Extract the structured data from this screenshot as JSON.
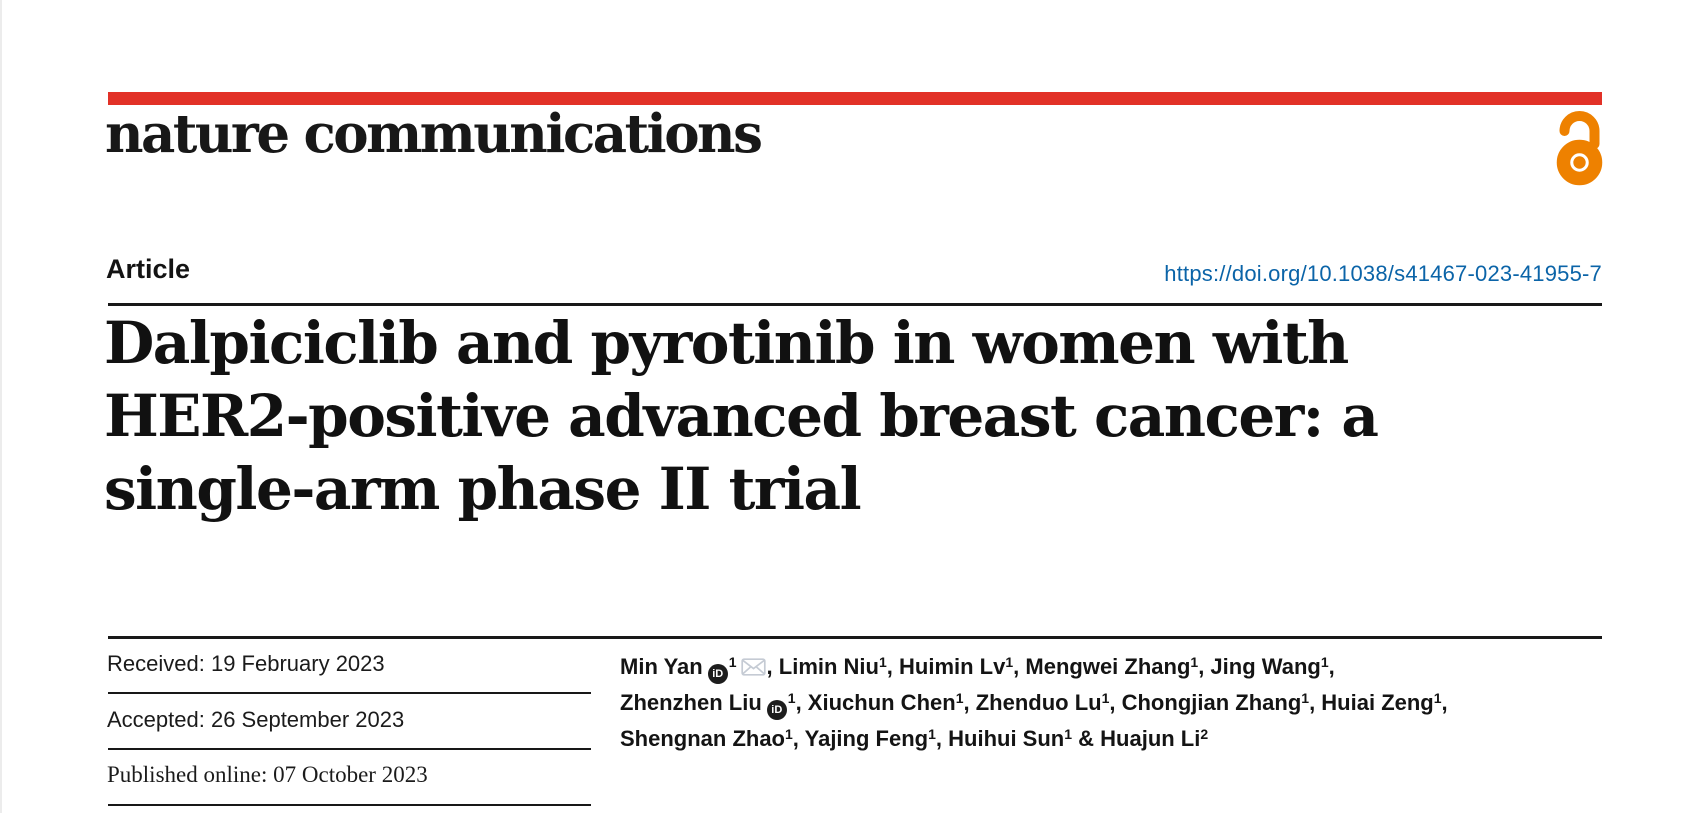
{
  "brand": {
    "logo_text": "nature communications",
    "bar_color": "#e23127",
    "open_access_color": "#ee8100"
  },
  "article": {
    "kicker": "Article",
    "doi": "https://doi.org/10.1038/s41467-023-41955-7",
    "doi_color": "#0b64a8",
    "title_lines": [
      "Dalpiciclib and pyrotinib in women with",
      "HER2-positive advanced breast cancer: a",
      "single-arm phase II trial"
    ]
  },
  "dates": {
    "rows": [
      {
        "label": "Received:",
        "value": "19 February 2023"
      },
      {
        "label": "Accepted:",
        "value": "26 September 2023"
      },
      {
        "label": "Published online:",
        "value": "07 October 2023"
      }
    ]
  },
  "authors": {
    "lines": [
      {
        "items": [
          {
            "name": "Min Yan",
            "sup": "1",
            "orcid": true,
            "email": true,
            "trail": ","
          },
          {
            "name": "Limin Niu",
            "sup": "1",
            "trail": ","
          },
          {
            "name": "Huimin Lv",
            "sup": "1",
            "trail": ","
          },
          {
            "name": "Mengwei Zhang",
            "sup": "1",
            "trail": ","
          },
          {
            "name": "Jing Wang",
            "sup": "1",
            "trail": ","
          }
        ]
      },
      {
        "items": [
          {
            "name": "Zhenzhen Liu",
            "sup": "1",
            "orcid": true,
            "trail": ","
          },
          {
            "name": "Xiuchun Chen",
            "sup": "1",
            "trail": ","
          },
          {
            "name": "Zhenduo Lu",
            "sup": "1",
            "trail": ","
          },
          {
            "name": "Chongjian Zhang",
            "sup": "1",
            "trail": ","
          },
          {
            "name": "Huiai Zeng",
            "sup": "1",
            "trail": ","
          }
        ]
      },
      {
        "items": [
          {
            "name": "Shengnan Zhao",
            "sup": "1",
            "trail": ","
          },
          {
            "name": "Yajing Feng",
            "sup": "1",
            "trail": ","
          },
          {
            "name": "Huihui Sun",
            "sup": "1",
            "trail": " &"
          },
          {
            "name": "Huajun Li",
            "sup": "2",
            "trail": ""
          }
        ]
      }
    ]
  },
  "icons": {
    "orcid_glyph": "iD",
    "email": "envelope",
    "open_access": "open padlock"
  }
}
